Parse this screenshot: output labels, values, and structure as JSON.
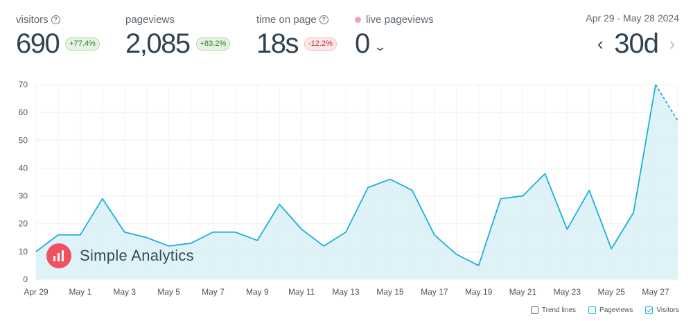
{
  "stats": {
    "visitors": {
      "label": "visitors",
      "value": "690",
      "change": "+77.4%"
    },
    "pageviews": {
      "label": "pageviews",
      "value": "2,085",
      "change": "+83.2%"
    },
    "time_on_page": {
      "label": "time on page",
      "value": "18s",
      "change": "-12.2%"
    },
    "live_pageviews": {
      "label": "live pageviews",
      "value": "0"
    }
  },
  "range": {
    "label": "Apr 29 - May 28 2024",
    "period": "30d"
  },
  "watermark": {
    "text": "Simple Analytics"
  },
  "legend": {
    "trend_lines": "Trend lines",
    "pageviews": "Pageviews",
    "visitors": "Visitors"
  },
  "colors": {
    "line": "#1bb0d8",
    "fill": "#d8f0f6",
    "brand": "#f0505f",
    "up": "#2e7d32",
    "down": "#c62828"
  },
  "chart_data": {
    "type": "area",
    "x": [
      "Apr 29",
      "Apr 30",
      "May 1",
      "May 2",
      "May 3",
      "May 4",
      "May 5",
      "May 6",
      "May 7",
      "May 8",
      "May 9",
      "May 10",
      "May 11",
      "May 12",
      "May 13",
      "May 14",
      "May 15",
      "May 16",
      "May 17",
      "May 18",
      "May 19",
      "May 20",
      "May 21",
      "May 22",
      "May 23",
      "May 24",
      "May 25",
      "May 26",
      "May 27",
      "May 28"
    ],
    "tick_labels": [
      "Apr 29",
      "May 1",
      "May 3",
      "May 5",
      "May 7",
      "May 9",
      "May 11",
      "May 13",
      "May 15",
      "May 17",
      "May 19",
      "May 21",
      "May 23",
      "May 25",
      "May 27"
    ],
    "series": [
      {
        "name": "Visitors",
        "values": [
          10,
          16,
          16,
          29,
          17,
          15,
          12,
          13,
          17,
          17,
          14,
          27,
          18,
          12,
          17,
          33,
          36,
          32,
          16,
          9,
          5,
          29,
          30,
          38,
          18,
          32,
          11,
          24,
          70,
          57
        ]
      }
    ],
    "ylim": [
      0,
      70
    ],
    "yticks": [
      0,
      10,
      20,
      30,
      40,
      50,
      60,
      70
    ],
    "grid": true,
    "last_segment_dashed": true
  }
}
